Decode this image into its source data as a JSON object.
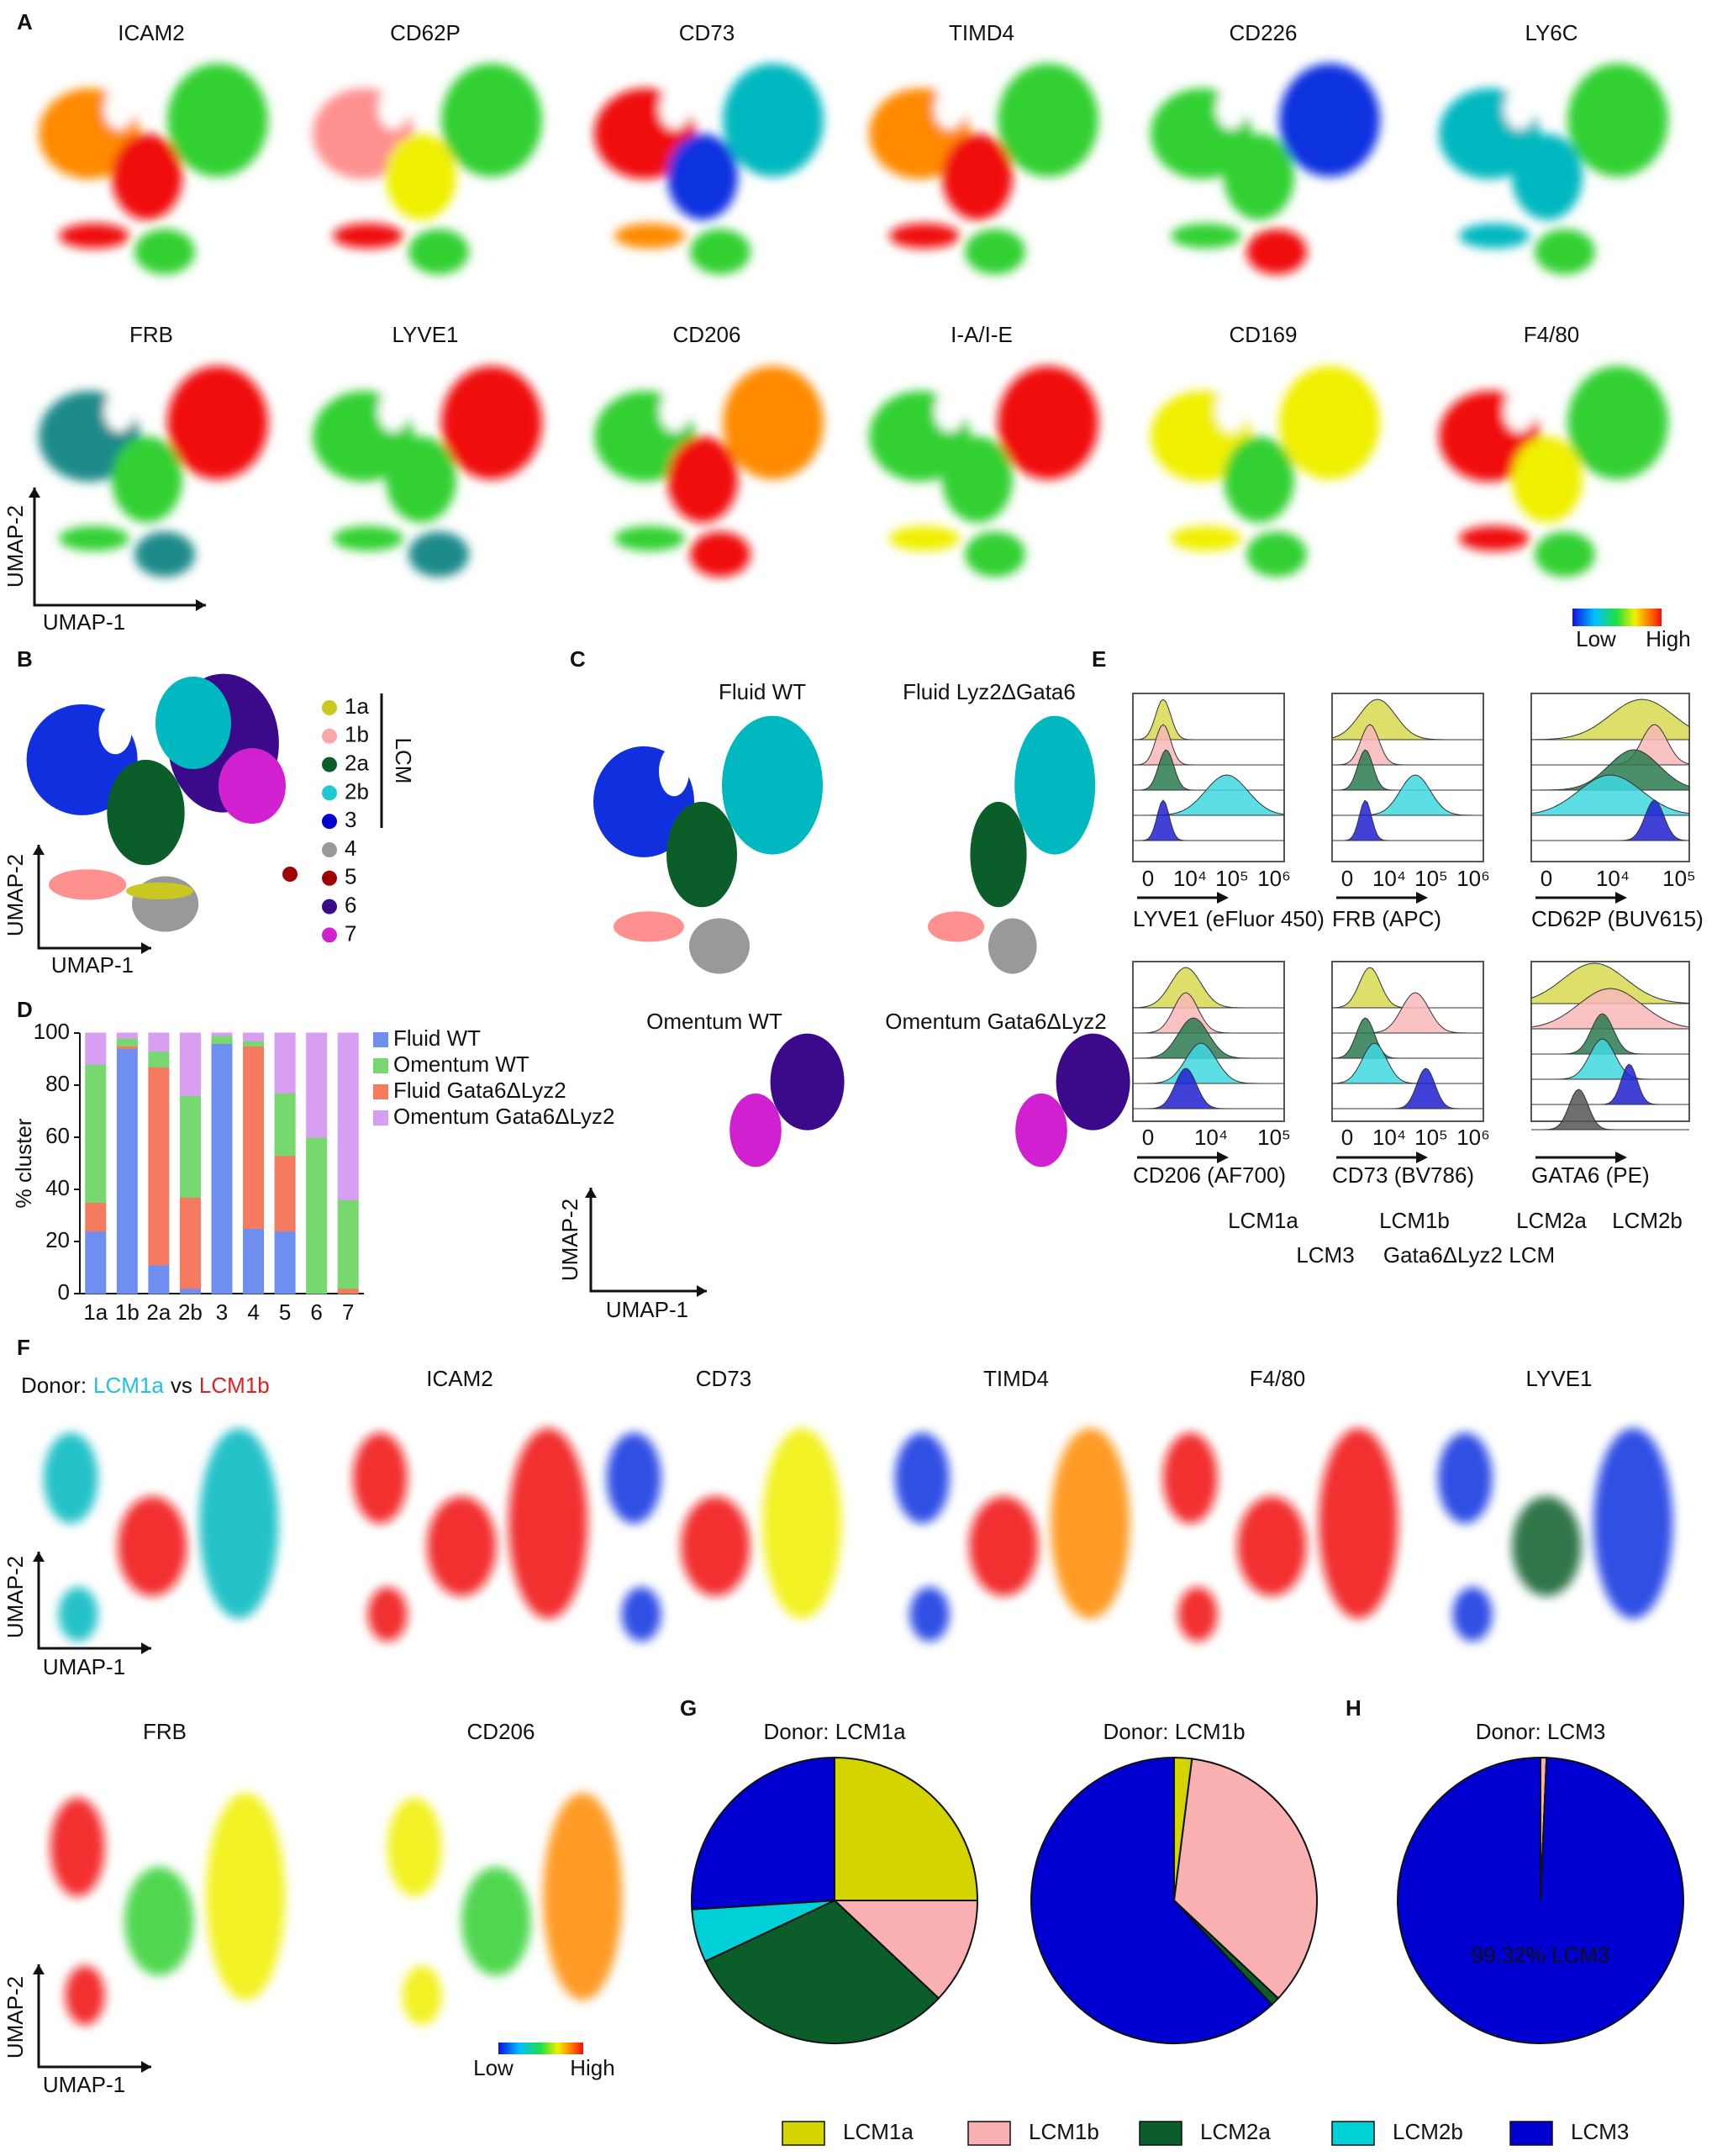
{
  "panels": {
    "A": {
      "letter": "A",
      "markers": [
        "ICAM2",
        "CD62P",
        "CD73",
        "TIMD4",
        "CD226",
        "LY6C",
        "FRB",
        "LYVE1",
        "CD206",
        "I-A/I-E",
        "CD169",
        "F4/80"
      ],
      "scale_low": "Low",
      "scale_high": "High"
    },
    "B": {
      "letter": "B",
      "clusters": [
        "1a",
        "1b",
        "2a",
        "2b",
        "3",
        "4",
        "5",
        "6",
        "7"
      ],
      "cluster_colors": [
        "#c8c820",
        "#f8a8a8",
        "#0b5e2a",
        "#20c8d0",
        "#0000d0",
        "#999999",
        "#a00000",
        "#3a0a8a",
        "#d020d0"
      ],
      "group": "LCM"
    },
    "C": {
      "letter": "C",
      "titles": [
        "Fluid WT",
        "Fluid Lyz2ΔGata6",
        "Omentum WT",
        "Omentum Gata6ΔLyz2"
      ]
    },
    "D": {
      "letter": "D"
    },
    "E": {
      "letter": "E",
      "plots": [
        {
          "label": "LYVE1 (eFluor 450)",
          "ticks": [
            "0",
            "10⁴",
            "10⁵",
            "10⁶"
          ]
        },
        {
          "label": "FRB (APC)",
          "ticks": [
            "0",
            "10⁴",
            "10⁵",
            "10⁶"
          ]
        },
        {
          "label": "CD62P (BUV615)",
          "ticks": [
            "0",
            "10⁴",
            "10⁵"
          ]
        },
        {
          "label": "CD206 (AF700)",
          "ticks": [
            "0",
            "10⁴",
            "10⁵"
          ]
        },
        {
          "label": "CD73 (BV786)",
          "ticks": [
            "0",
            "10⁴",
            "10⁵",
            "10⁶"
          ]
        },
        {
          "label": "GATA6 (PE)",
          "ticks": []
        }
      ],
      "legend": [
        "LCM1a",
        "LCM1b",
        "LCM2a",
        "LCM2b",
        "LCM3",
        "Gata6ΔLyz2 LCM"
      ],
      "legend_colors": [
        "#c8c820",
        "#f0a0a0",
        "#0b6e3a",
        "#10c0d0",
        "#0000d0",
        "#000000"
      ]
    },
    "F": {
      "letter": "F",
      "donor": [
        "Donor:",
        "LCM1a",
        "vs",
        "LCM1b"
      ],
      "markers": [
        "ICAM2",
        "CD73",
        "TIMD4",
        "F4/80",
        "LYVE1",
        "FRB",
        "CD206"
      ],
      "scale_low": "Low",
      "scale_high": "High"
    },
    "G": {
      "letter": "G"
    },
    "H": {
      "letter": "H"
    }
  },
  "umap_axes": [
    {
      "x": "UMAP-1",
      "y": "UMAP-2"
    },
    {
      "x": "UMAP-1",
      "y": "UMAP-2"
    },
    {
      "x": "UMAP-1",
      "y": "UMAP-2"
    },
    {
      "x": "UMAP-1",
      "y": "UMAP-2"
    },
    {
      "x": "UMAP-1",
      "y": "UMAP-2"
    }
  ],
  "chart_data": [
    {
      "type": "bar",
      "stacked": true,
      "y_label": "% cluster",
      "categories": [
        "1a",
        "1b",
        "2a",
        "2b",
        "3",
        "4",
        "5",
        "6",
        "7"
      ],
      "series": [
        {
          "name": "Fluid WT",
          "color": "#6f8ff0",
          "values": [
            24,
            94,
            11,
            2,
            96,
            25,
            24,
            0,
            0
          ]
        },
        {
          "name": "Omentum WT",
          "color": "#78d870",
          "values": [
            53,
            3,
            6,
            39,
            3,
            2,
            24,
            60,
            34
          ]
        },
        {
          "name": "Fluid Gata6ΔLyz2",
          "color": "#f47a60",
          "values": [
            11,
            1,
            76,
            35,
            0,
            70,
            29,
            0,
            2
          ]
        },
        {
          "name": "Omentum Gata6ΔLyz2",
          "color": "#d89ef0",
          "values": [
            12,
            2,
            7,
            24,
            1,
            3,
            23,
            40,
            64
          ]
        }
      ],
      "ylim": [
        0,
        100
      ],
      "yticks": [
        0,
        20,
        40,
        60,
        80,
        100
      ]
    },
    {
      "type": "pie",
      "title": "Donor: LCM1a",
      "categories": [
        "LCM1a",
        "LCM1b",
        "LCM2a",
        "LCM2b",
        "LCM3"
      ],
      "colors": [
        "#d4d400",
        "#f8b0b0",
        "#0b5e2a",
        "#00d0d8",
        "#0000d0"
      ],
      "values": [
        25,
        12,
        31,
        6,
        26
      ]
    },
    {
      "type": "pie",
      "title": "Donor: LCM1b",
      "categories": [
        "LCM1a",
        "LCM1b",
        "LCM2a",
        "LCM2b",
        "LCM3"
      ],
      "colors": [
        "#d4d400",
        "#f8b0b0",
        "#0b5e2a",
        "#00d0d8",
        "#0000d0"
      ],
      "values": [
        2,
        35,
        1,
        0,
        62
      ]
    },
    {
      "type": "pie",
      "title": "Donor: LCM3",
      "categories": [
        "LCM1a",
        "LCM1b",
        "LCM2a",
        "LCM2b",
        "LCM3"
      ],
      "colors": [
        "#d4d400",
        "#f8b0b0",
        "#0b5e2a",
        "#00d0d8",
        "#0000d0"
      ],
      "values": [
        0,
        0.68,
        0,
        0,
        99.32
      ],
      "value_labels": [
        null,
        null,
        null,
        null,
        "99.32%  LCM3"
      ]
    }
  ]
}
